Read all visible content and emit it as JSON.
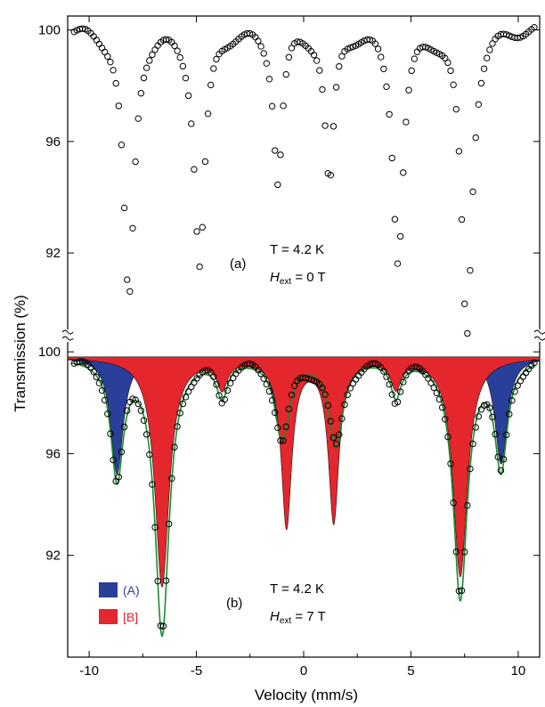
{
  "chart_data": {
    "type": "scatter",
    "xlabel": "Velocity (mm/s)",
    "ylabel": "Transmission (%)",
    "xlim": [
      -11,
      11
    ],
    "x_ticks": [
      -10,
      -5,
      0,
      5,
      10
    ],
    "panels": [
      {
        "id": "a",
        "label": "(a)",
        "ylim": [
          89,
          100.5
        ],
        "y_ticks": [
          100,
          96,
          92
        ],
        "annotation": {
          "T": "T = 4.2 K",
          "H": "H",
          "H_sub": "ext",
          "H_value": " = 0 T"
        },
        "series": [
          {
            "kind": "points",
            "baseline": 100.1,
            "lines": [
              {
                "center": -8.15,
                "depth": 9.8,
                "width": 0.3
              },
              {
                "center": -4.85,
                "depth": 8.5,
                "width": 0.3
              },
              {
                "center": -1.2,
                "depth": 5.4,
                "width": 0.25
              },
              {
                "center": 1.2,
                "depth": 5.6,
                "width": 0.25
              },
              {
                "center": 4.4,
                "depth": 8.2,
                "width": 0.3
              },
              {
                "center": 7.6,
                "depth": 11.0,
                "width": 0.3
              }
            ]
          }
        ]
      },
      {
        "id": "b",
        "label": "(b)",
        "ylim": [
          88,
          100.6
        ],
        "y_ticks": [
          100,
          96,
          92
        ],
        "annotation": {
          "T": "T = 4.2 K",
          "H": "H",
          "H_sub": "ext",
          "H_value": " = 7 T"
        },
        "legend": [
          {
            "name": "(A)",
            "color": "#2a3f99"
          },
          {
            "name": "[B]",
            "color": "#e4262d"
          }
        ],
        "series": [
          {
            "name": "(A)",
            "kind": "filled",
            "color": "#2a3f99",
            "baseline": 99.8,
            "lines": [
              {
                "center": -8.7,
                "depth": 4.6,
                "width": 0.35
              },
              {
                "center": -5.0,
                "depth": 0.5,
                "width": 0.3
              },
              {
                "center": -1.2,
                "depth": 2.6,
                "width": 0.3
              },
              {
                "center": 1.6,
                "depth": 2.3,
                "width": 0.3
              },
              {
                "center": 5.5,
                "depth": 0.6,
                "width": 0.3
              },
              {
                "center": 9.2,
                "depth": 4.2,
                "width": 0.35
              }
            ]
          },
          {
            "name": "[B]",
            "kind": "filled",
            "color": "#e4262d",
            "baseline": 99.8,
            "lines": [
              {
                "center": -6.6,
                "depth": 9.0,
                "width": 0.4
              },
              {
                "center": -3.8,
                "depth": 1.1,
                "width": 0.3
              },
              {
                "center": -0.8,
                "depth": 6.6,
                "width": 0.3
              },
              {
                "center": 1.4,
                "depth": 6.4,
                "width": 0.3
              },
              {
                "center": 4.3,
                "depth": 1.1,
                "width": 0.3
              },
              {
                "center": 7.3,
                "depth": 8.6,
                "width": 0.4
              }
            ]
          },
          {
            "kind": "points",
            "baseline": 99.8,
            "lines": [
              {
                "center": -8.7,
                "depth": 4.6,
                "width": 0.35
              },
              {
                "center": -6.6,
                "depth": 10.8,
                "width": 0.4
              },
              {
                "center": -3.8,
                "depth": 1.4,
                "width": 0.3
              },
              {
                "center": -1.0,
                "depth": 3.2,
                "width": 0.4
              },
              {
                "center": 1.5,
                "depth": 3.4,
                "width": 0.4
              },
              {
                "center": 4.3,
                "depth": 1.4,
                "width": 0.3
              },
              {
                "center": 7.3,
                "depth": 9.4,
                "width": 0.4
              },
              {
                "center": 9.2,
                "depth": 4.2,
                "width": 0.35
              }
            ]
          }
        ]
      }
    ]
  }
}
